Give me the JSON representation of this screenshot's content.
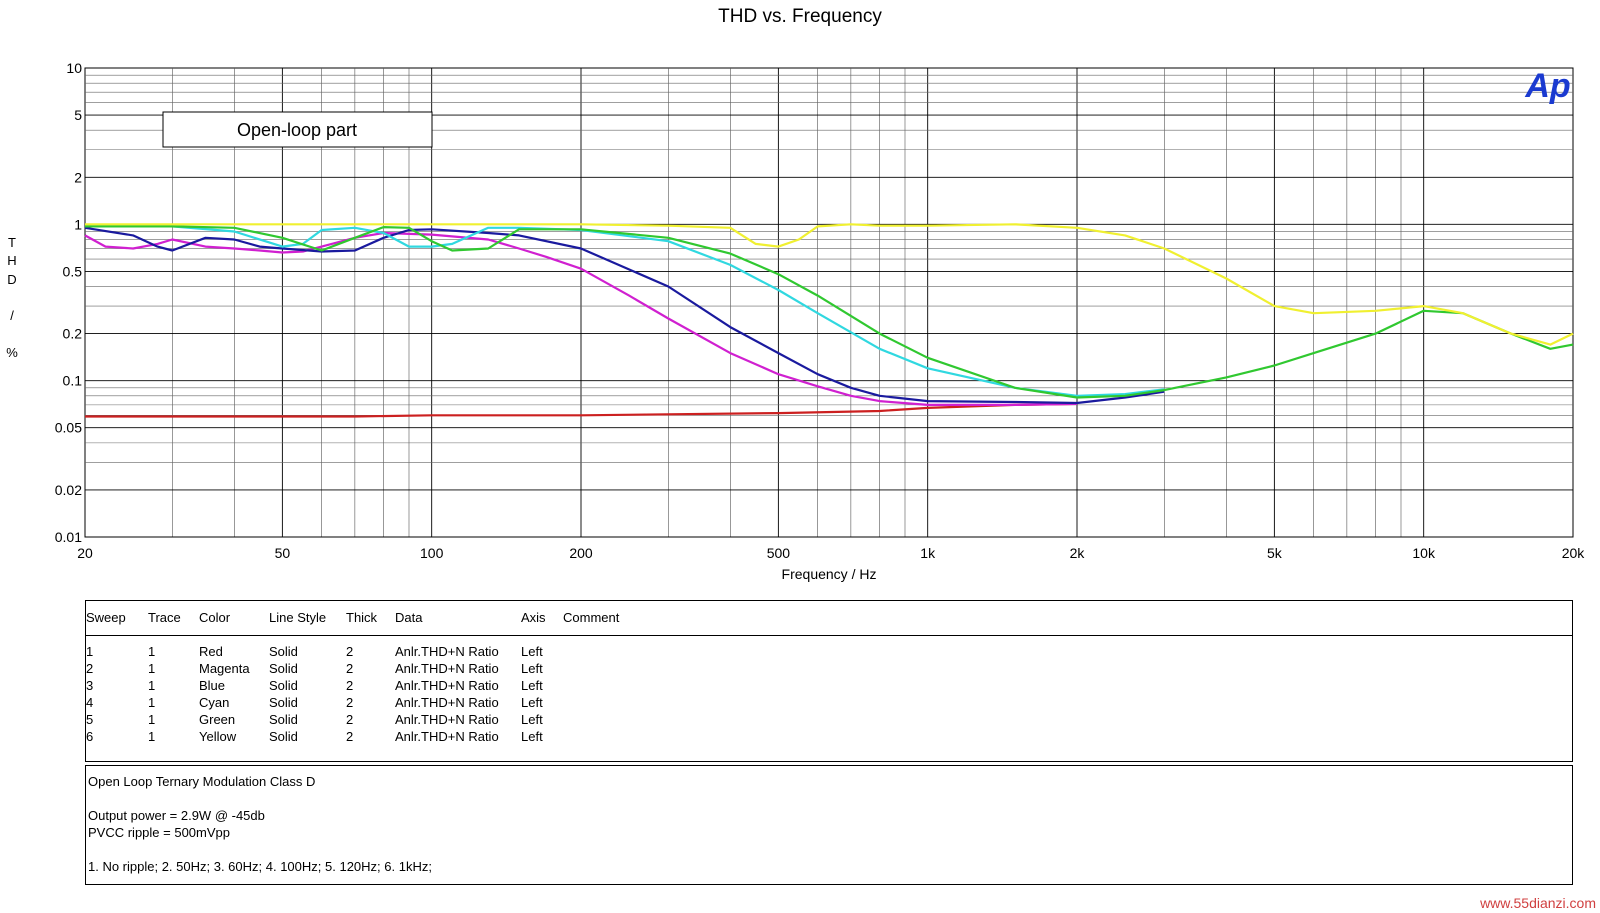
{
  "chart_data": {
    "type": "line",
    "title": "THD vs. Frequency",
    "xlabel": "Frequency / Hz",
    "ylabel": "T H D / %",
    "xscale": "log",
    "yscale": "log",
    "xlim": [
      20,
      20000
    ],
    "ylim": [
      0.01,
      10
    ],
    "x_ticks": [
      {
        "v": 20,
        "label": "20"
      },
      {
        "v": 50,
        "label": "50"
      },
      {
        "v": 100,
        "label": "100"
      },
      {
        "v": 200,
        "label": "200"
      },
      {
        "v": 500,
        "label": "500"
      },
      {
        "v": 1000,
        "label": "1k"
      },
      {
        "v": 2000,
        "label": "2k"
      },
      {
        "v": 5000,
        "label": "5k"
      },
      {
        "v": 10000,
        "label": "10k"
      },
      {
        "v": 20000,
        "label": "20k"
      }
    ],
    "y_ticks": [
      {
        "v": 10,
        "label": "10"
      },
      {
        "v": 5,
        "label": "5"
      },
      {
        "v": 2,
        "label": "2"
      },
      {
        "v": 1,
        "label": "1"
      },
      {
        "v": 0.5,
        "label": "0.5"
      },
      {
        "v": 0.2,
        "label": "0.2"
      },
      {
        "v": 0.1,
        "label": "0.1"
      },
      {
        "v": 0.05,
        "label": "0.05"
      },
      {
        "v": 0.02,
        "label": "0.02"
      },
      {
        "v": 0.01,
        "label": "0.01"
      }
    ],
    "grid": true,
    "annotation": "Open-loop part",
    "logo": "Ap",
    "series": [
      {
        "name": "Red",
        "color": "#cc2020",
        "x": [
          20,
          30,
          40,
          50,
          70,
          100,
          200,
          500,
          800,
          1000,
          1500,
          2000
        ],
        "y": [
          0.059,
          0.059,
          0.059,
          0.059,
          0.059,
          0.06,
          0.06,
          0.062,
          0.064,
          0.067,
          0.07,
          0.071
        ]
      },
      {
        "name": "Magenta",
        "color": "#d020d0",
        "x": [
          20,
          22,
          25,
          28,
          30,
          35,
          40,
          45,
          50,
          55,
          60,
          70,
          80,
          100,
          130,
          150,
          170,
          200,
          250,
          300,
          400,
          500,
          600,
          700,
          800,
          1000,
          1500,
          2000
        ],
        "y": [
          0.85,
          0.72,
          0.7,
          0.75,
          0.8,
          0.72,
          0.7,
          0.68,
          0.66,
          0.67,
          0.72,
          0.82,
          0.88,
          0.86,
          0.8,
          0.7,
          0.62,
          0.52,
          0.35,
          0.25,
          0.15,
          0.11,
          0.092,
          0.08,
          0.074,
          0.07,
          0.07,
          0.071
        ]
      },
      {
        "name": "Blue",
        "color": "#1a1a9e",
        "x": [
          20,
          25,
          28,
          30,
          35,
          40,
          45,
          50,
          60,
          70,
          80,
          90,
          100,
          130,
          150,
          200,
          300,
          400,
          500,
          600,
          700,
          800,
          1000,
          1500,
          2000,
          2500,
          3000
        ],
        "y": [
          0.95,
          0.85,
          0.72,
          0.68,
          0.82,
          0.8,
          0.72,
          0.7,
          0.67,
          0.68,
          0.82,
          0.92,
          0.93,
          0.88,
          0.85,
          0.7,
          0.4,
          0.22,
          0.15,
          0.11,
          0.09,
          0.08,
          0.074,
          0.073,
          0.072,
          0.078,
          0.085
        ]
      },
      {
        "name": "Cyan",
        "color": "#30d8e0",
        "x": [
          20,
          30,
          40,
          50,
          55,
          60,
          70,
          80,
          90,
          100,
          110,
          130,
          150,
          200,
          300,
          400,
          500,
          600,
          800,
          1000,
          1500,
          2000,
          2500,
          3000
        ],
        "y": [
          0.97,
          0.97,
          0.9,
          0.72,
          0.75,
          0.92,
          0.95,
          0.88,
          0.72,
          0.72,
          0.75,
          0.95,
          0.95,
          0.92,
          0.78,
          0.55,
          0.38,
          0.27,
          0.16,
          0.12,
          0.09,
          0.08,
          0.082,
          0.088
        ]
      },
      {
        "name": "Green",
        "color": "#30c830",
        "x": [
          20,
          30,
          40,
          50,
          60,
          70,
          80,
          90,
          100,
          110,
          130,
          150,
          200,
          300,
          400,
          500,
          600,
          800,
          1000,
          1500,
          2000,
          2500,
          3000,
          4000,
          5000,
          6000,
          8000,
          10000,
          12000,
          15000,
          18000,
          20000
        ],
        "y": [
          0.97,
          0.97,
          0.95,
          0.82,
          0.68,
          0.82,
          0.96,
          0.95,
          0.78,
          0.68,
          0.7,
          0.93,
          0.93,
          0.82,
          0.65,
          0.48,
          0.35,
          0.2,
          0.14,
          0.09,
          0.078,
          0.08,
          0.087,
          0.105,
          0.125,
          0.15,
          0.2,
          0.28,
          0.27,
          0.2,
          0.16,
          0.17
        ]
      },
      {
        "name": "Yellow",
        "color": "#f0f030",
        "x": [
          20,
          50,
          100,
          200,
          300,
          400,
          450,
          500,
          550,
          600,
          700,
          800,
          1000,
          1500,
          2000,
          2500,
          3000,
          4000,
          5000,
          6000,
          8000,
          10000,
          12000,
          15000,
          18000,
          20000
        ],
        "y": [
          1.0,
          1.0,
          1.0,
          1.0,
          0.98,
          0.95,
          0.75,
          0.72,
          0.8,
          0.97,
          1.0,
          0.98,
          0.98,
          1.0,
          0.95,
          0.85,
          0.7,
          0.45,
          0.3,
          0.27,
          0.28,
          0.3,
          0.27,
          0.2,
          0.17,
          0.2
        ]
      }
    ]
  },
  "sweep_table": {
    "headers": [
      "Sweep",
      "Trace",
      "Color",
      "Line Style",
      "Thick",
      "Data",
      "Axis",
      "Comment"
    ],
    "rows": [
      [
        "1",
        "1",
        "Red",
        "Solid",
        "2",
        "Anlr.THD+N Ratio",
        "Left",
        ""
      ],
      [
        "2",
        "1",
        "Magenta",
        "Solid",
        "2",
        "Anlr.THD+N Ratio",
        "Left",
        ""
      ],
      [
        "3",
        "1",
        "Blue",
        "Solid",
        "2",
        "Anlr.THD+N Ratio",
        "Left",
        ""
      ],
      [
        "4",
        "1",
        "Cyan",
        "Solid",
        "2",
        "Anlr.THD+N Ratio",
        "Left",
        ""
      ],
      [
        "5",
        "1",
        "Green",
        "Solid",
        "2",
        "Anlr.THD+N Ratio",
        "Left",
        ""
      ],
      [
        "6",
        "1",
        "Yellow",
        "Solid",
        "2",
        "Anlr.THD+N Ratio",
        "Left",
        ""
      ]
    ]
  },
  "comment": {
    "lines": [
      "Open Loop Ternary Modulation Class D",
      "",
      "Output power = 2.9W @ -45db",
      "PVCC ripple = 500mVpp",
      "",
      "1. No ripple;   2. 50Hz;    3. 60Hz;    4. 100Hz;    5. 120Hz;    6. 1kHz;"
    ]
  },
  "watermark": "www.55dianzi.com"
}
